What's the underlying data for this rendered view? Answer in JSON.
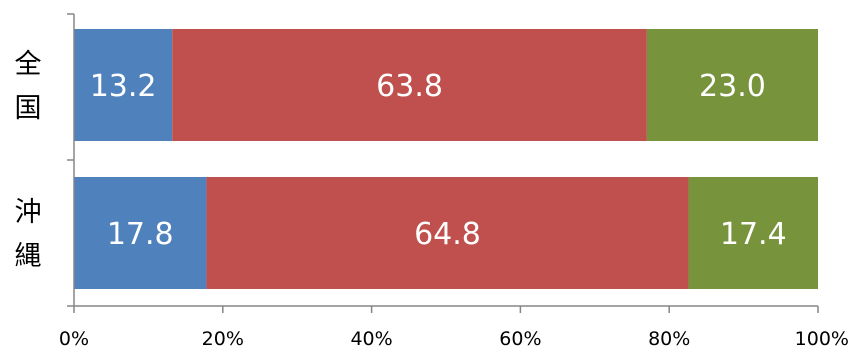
{
  "chart_data": {
    "type": "bar",
    "orientation": "horizontal",
    "stacked": true,
    "percent_stacked": true,
    "categories": [
      "全国",
      "沖縄"
    ],
    "series": [
      {
        "values": [
          13.2,
          17.8
        ],
        "color": "#4f81bd"
      },
      {
        "values": [
          63.8,
          64.8
        ],
        "color": "#c0504d"
      },
      {
        "values": [
          23.0,
          17.4
        ],
        "color": "#77933c"
      }
    ],
    "data_labels": [
      [
        "13.2",
        "17.8"
      ],
      [
        "63.8",
        "64.8"
      ],
      [
        "23.0",
        "17.4"
      ]
    ],
    "x_ticks": [
      "0%",
      "20%",
      "40%",
      "60%",
      "80%",
      "100%"
    ],
    "xlim": [
      0,
      100
    ],
    "title": "",
    "xlabel": "",
    "ylabel": "",
    "grid": false,
    "legend": "none"
  }
}
